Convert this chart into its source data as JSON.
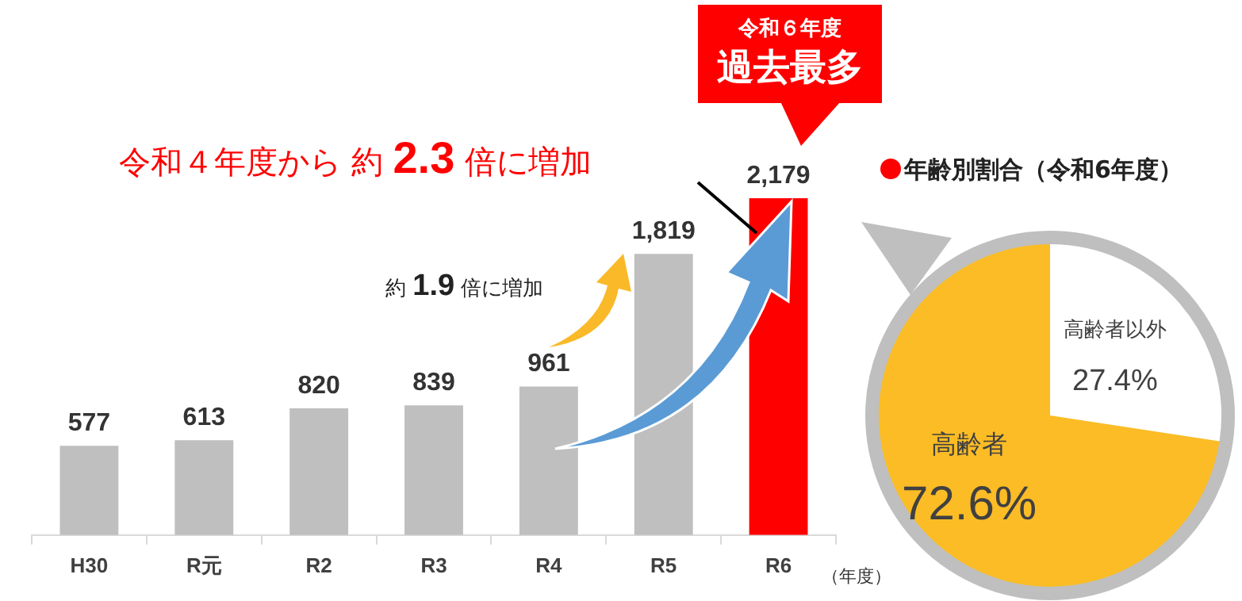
{
  "chart_data": [
    {
      "type": "bar",
      "categories": [
        "H30",
        "R元",
        "R2",
        "R3",
        "R4",
        "R5",
        "R6"
      ],
      "values": [
        577,
        613,
        820,
        839,
        961,
        1819,
        2179
      ],
      "colors": [
        "#bfbfbf",
        "#bfbfbf",
        "#bfbfbf",
        "#bfbfbf",
        "#bfbfbf",
        "#bfbfbf",
        "#ff0000"
      ],
      "value_labels": [
        "577",
        "613",
        "820",
        "839",
        "961",
        "1,819",
        "2,179"
      ],
      "xlabel": "（年度）",
      "annotations": [
        "令和４年度から 約 2.3 倍に増加",
        "約 1.9 倍に増加",
        "令和６年度",
        "過去最多"
      ],
      "grid": false,
      "legend": false
    },
    {
      "type": "pie",
      "title": "年齢別割合（令和6年度）",
      "categories": [
        "高齢者以外",
        "高齢者"
      ],
      "values": [
        27.4,
        72.6
      ],
      "colors": [
        "#ffffff",
        "#fbbc25"
      ],
      "value_labels": [
        "27.4%",
        "72.6%"
      ],
      "legend": false
    }
  ]
}
